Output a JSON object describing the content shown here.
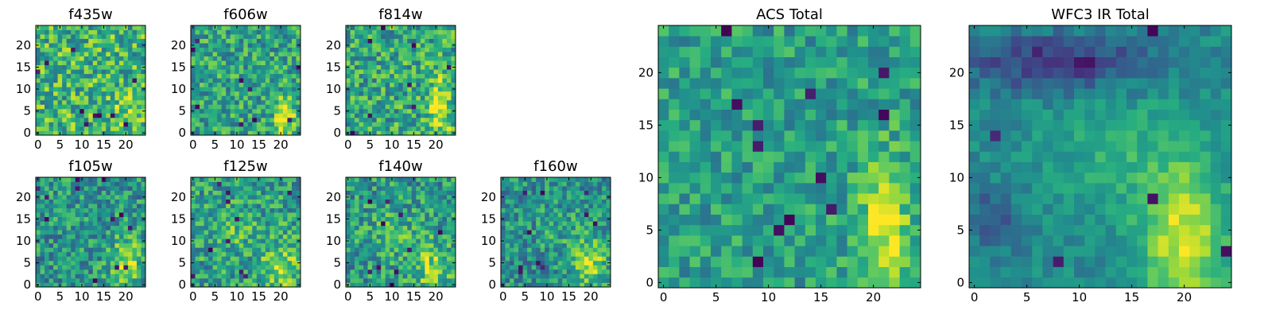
{
  "figure": {
    "background": "#ffffff"
  },
  "chart_data": [
    {
      "type": "heatmap",
      "id": "f435w",
      "title": "f435w",
      "grid_size": 25,
      "xlim": [
        -0.5,
        24.5
      ],
      "ylim": [
        -0.5,
        24.5
      ],
      "xticks": [
        "0",
        "5",
        "10",
        "15",
        "20"
      ],
      "yticks": [
        "0",
        "5",
        "10",
        "15",
        "20"
      ],
      "colormap": "viridis",
      "description_note": "noisy pixel map, mostly green-yellow",
      "seed": 11,
      "base": 0.66,
      "noise": 0.28,
      "blobs": [
        {
          "cx": 20,
          "cy": 4,
          "sx": 2.2,
          "sy": 2.5,
          "amp": 0.15
        }
      ],
      "dark_pixels": 10
    },
    {
      "type": "heatmap",
      "id": "f606w",
      "title": "f606w",
      "grid_size": 25,
      "xlim": [
        -0.5,
        24.5
      ],
      "ylim": [
        -0.5,
        24.5
      ],
      "xticks": [
        "0",
        "5",
        "10",
        "15",
        "20"
      ],
      "yticks": [
        "0",
        "5",
        "10",
        "15",
        "20"
      ],
      "colormap": "viridis",
      "seed": 23,
      "base": 0.58,
      "noise": 0.24,
      "blobs": [
        {
          "cx": 21,
          "cy": 4,
          "sx": 1.6,
          "sy": 3,
          "amp": 0.42
        }
      ],
      "dark_pixels": 9
    },
    {
      "type": "heatmap",
      "id": "f814w",
      "title": "f814w",
      "grid_size": 25,
      "xlim": [
        -0.5,
        24.5
      ],
      "ylim": [
        -0.5,
        24.5
      ],
      "xticks": [
        "0",
        "5",
        "10",
        "15",
        "20"
      ],
      "yticks": [
        "0",
        "5",
        "10",
        "15",
        "20"
      ],
      "colormap": "viridis",
      "seed": 37,
      "base": 0.6,
      "noise": 0.26,
      "blobs": [
        {
          "cx": 21,
          "cy": 6,
          "sx": 1.8,
          "sy": 5,
          "amp": 0.35
        }
      ],
      "dark_pixels": 8
    },
    {
      "type": "heatmap",
      "id": "f105w",
      "title": "f105w",
      "grid_size": 25,
      "xlim": [
        -0.5,
        24.5
      ],
      "ylim": [
        -0.5,
        24.5
      ],
      "xticks": [
        "0",
        "5",
        "10",
        "15",
        "20"
      ],
      "yticks": [
        "0",
        "5",
        "10",
        "15",
        "20"
      ],
      "colormap": "viridis",
      "seed": 41,
      "base": 0.52,
      "noise": 0.24,
      "blobs": [
        {
          "cx": 20,
          "cy": 5,
          "sx": 2.5,
          "sy": 4,
          "amp": 0.35
        }
      ],
      "dark_pixels": 12
    },
    {
      "type": "heatmap",
      "id": "f125w",
      "title": "f125w",
      "grid_size": 25,
      "xlim": [
        -0.5,
        24.5
      ],
      "ylim": [
        -0.5,
        24.5
      ],
      "xticks": [
        "0",
        "5",
        "10",
        "15",
        "20"
      ],
      "yticks": [
        "0",
        "5",
        "10",
        "15",
        "20"
      ],
      "colormap": "viridis",
      "seed": 53,
      "base": 0.56,
      "noise": 0.24,
      "blobs": [
        {
          "cx": 20,
          "cy": 4,
          "sx": 3,
          "sy": 4,
          "amp": 0.3
        },
        {
          "cx": 9,
          "cy": 13,
          "sx": 4,
          "sy": 4,
          "amp": 0.12
        }
      ],
      "dark_pixels": 10
    },
    {
      "type": "heatmap",
      "id": "f140w",
      "title": "f140w",
      "grid_size": 25,
      "xlim": [
        -0.5,
        24.5
      ],
      "ylim": [
        -0.5,
        24.5
      ],
      "xticks": [
        "0",
        "5",
        "10",
        "15",
        "20"
      ],
      "yticks": [
        "0",
        "5",
        "10",
        "15",
        "20"
      ],
      "colormap": "viridis",
      "seed": 67,
      "base": 0.54,
      "noise": 0.24,
      "blobs": [
        {
          "cx": 19,
          "cy": 4,
          "sx": 3,
          "sy": 4,
          "amp": 0.28
        },
        {
          "cx": 11,
          "cy": 12,
          "sx": 4,
          "sy": 4,
          "amp": 0.12
        }
      ],
      "dark_pixels": 10
    },
    {
      "type": "heatmap",
      "id": "f160w",
      "title": "f160w",
      "grid_size": 25,
      "xlim": [
        -0.5,
        24.5
      ],
      "ylim": [
        -0.5,
        24.5
      ],
      "xticks": [
        "0",
        "5",
        "10",
        "15",
        "20"
      ],
      "yticks": [
        "0",
        "5",
        "10",
        "15",
        "20"
      ],
      "colormap": "viridis",
      "seed": 79,
      "base": 0.5,
      "noise": 0.22,
      "blobs": [
        {
          "cx": 20,
          "cy": 5,
          "sx": 3,
          "sy": 4,
          "amp": 0.32
        },
        {
          "cx": 13,
          "cy": 13,
          "sx": 4,
          "sy": 4,
          "amp": 0.1
        }
      ],
      "dark_pixels": 10
    },
    {
      "type": "heatmap",
      "id": "acs-total",
      "title": "ACS Total",
      "grid_size": 25,
      "xlim": [
        -0.5,
        24.5
      ],
      "ylim": [
        -0.5,
        24.5
      ],
      "xticks": [
        "0",
        "5",
        "10",
        "15",
        "20"
      ],
      "yticks": [
        "0",
        "5",
        "10",
        "15",
        "20"
      ],
      "colormap": "viridis",
      "seed": 97,
      "base": 0.56,
      "noise": 0.18,
      "blobs": [
        {
          "cx": 21,
          "cy": 5,
          "sx": 1.8,
          "sy": 5,
          "amp": 0.38
        }
      ],
      "dark_pixels": 12
    },
    {
      "type": "heatmap",
      "id": "wfc3-ir-total",
      "title": "WFC3 IR Total",
      "grid_size": 25,
      "xlim": [
        -0.5,
        24.5
      ],
      "ylim": [
        -0.5,
        24.5
      ],
      "xticks": [
        "0",
        "5",
        "10",
        "15",
        "20"
      ],
      "yticks": [
        "0",
        "5",
        "10",
        "15",
        "20"
      ],
      "colormap": "viridis",
      "seed": 113,
      "base": 0.48,
      "noise": 0.1,
      "blobs": [
        {
          "cx": 20,
          "cy": 4,
          "sx": 2.8,
          "sy": 5,
          "amp": 0.45
        },
        {
          "cx": 14,
          "cy": 12,
          "sx": 5,
          "sy": 4,
          "amp": 0.15
        },
        {
          "cx": 8,
          "cy": 21,
          "sx": 6,
          "sy": 1.8,
          "amp": -0.35
        },
        {
          "cx": 2,
          "cy": 6,
          "sx": 1.5,
          "sy": 2,
          "amp": -0.25
        }
      ],
      "dark_pixels": 6
    }
  ]
}
